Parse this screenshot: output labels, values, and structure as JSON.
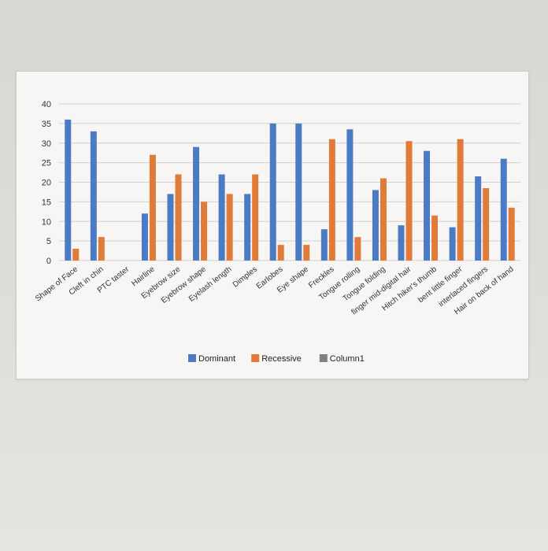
{
  "chart_data": {
    "type": "bar",
    "title": "",
    "xlabel": "",
    "ylabel": "",
    "ylim": [
      0,
      40
    ],
    "yticks": [
      0,
      5,
      10,
      15,
      20,
      25,
      30,
      35,
      40
    ],
    "grid": true,
    "legend_position": "bottom",
    "categories": [
      "Shape of Face",
      "Cleft in chin",
      "PTC taster",
      "Hairline",
      "Eyebrow size",
      "Eyebrow shape",
      "Eyelash length",
      "Dimples",
      "Earlobes",
      "Eye shape",
      "Freckles",
      "Tongue rolling",
      "Tongue folding",
      "finger mid-digital hair",
      "Hitch hiker's thumb",
      "bent little finger",
      "interlaced fingers",
      "Hair on back of hand"
    ],
    "series": [
      {
        "name": "Dominant",
        "color": "#4a7bc4",
        "values": [
          36,
          33,
          0,
          12,
          17,
          29,
          22,
          17,
          35,
          35,
          8,
          33.5,
          18,
          9,
          28,
          8.5,
          21.5,
          26
        ]
      },
      {
        "name": "Recessive",
        "color": "#e07b39",
        "values": [
          3,
          6,
          0,
          27,
          22,
          15,
          17,
          22,
          4,
          4,
          31,
          6,
          21,
          30.5,
          11.5,
          31,
          18.5,
          13.5
        ]
      },
      {
        "name": "Column1",
        "color": "#7f7f7f",
        "values": [
          0,
          0,
          0,
          0,
          0,
          0,
          0,
          0,
          0,
          0,
          0,
          0,
          0,
          0,
          0,
          0,
          0,
          0
        ]
      }
    ]
  }
}
